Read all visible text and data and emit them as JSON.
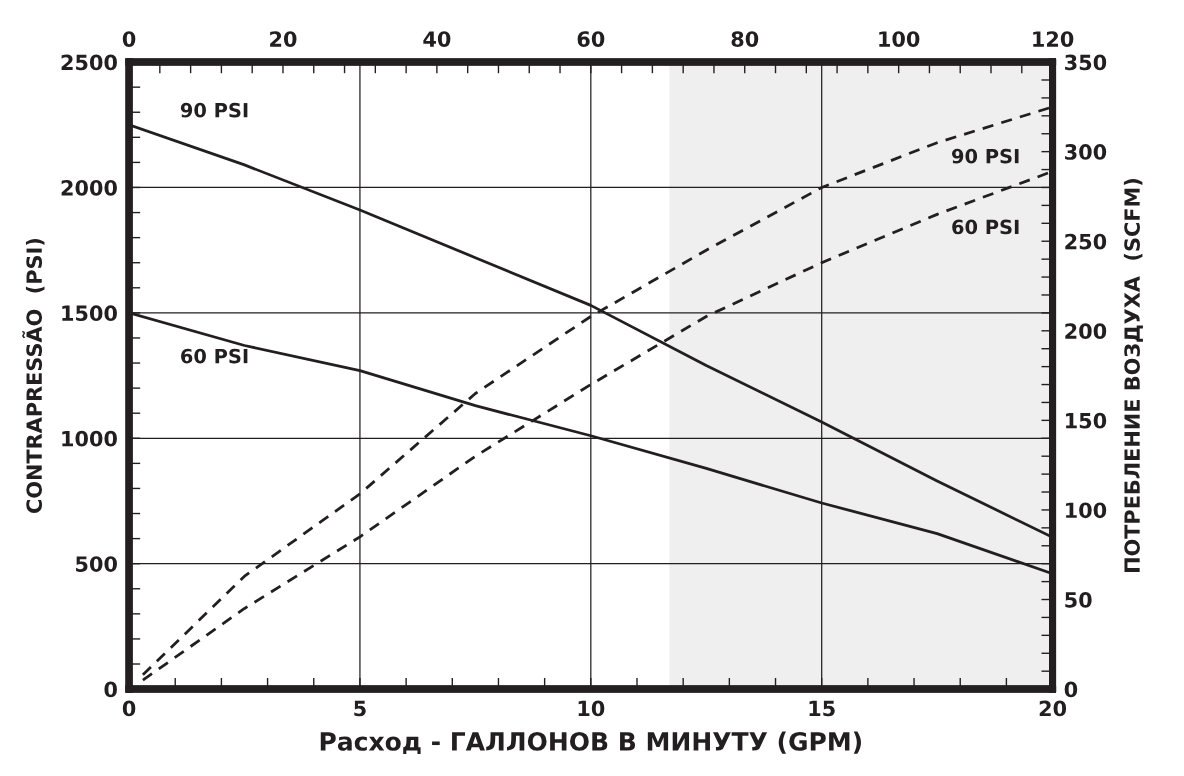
{
  "chart_data": {
    "type": "line",
    "xlabel": "Расход - ГАЛЛОНОВ В МИНУТУ (GPM)",
    "ylabel": "CONTRAPRESSÃO  (PSI)",
    "y2label": "ПОТРЕБЛЕНИЕ ВОЗДУХА  (SCFM)",
    "xlim": [
      0,
      20
    ],
    "ylim": [
      0,
      2500
    ],
    "y2lim": [
      0,
      350
    ],
    "x2lim": [
      0,
      120
    ],
    "xticks": [
      0,
      {
        "value": 1,
        "label": null
      },
      {
        "value": 2,
        "label": null
      },
      {
        "value": 3,
        "label": null
      },
      {
        "value": 4,
        "label": null
      },
      5,
      {
        "value": 6,
        "label": null
      },
      {
        "value": 7,
        "label": null
      },
      {
        "value": 8,
        "label": null
      },
      {
        "value": 9,
        "label": null
      },
      10,
      {
        "value": 11,
        "label": null
      },
      {
        "value": 12,
        "label": null
      },
      {
        "value": 13,
        "label": null
      },
      {
        "value": 14,
        "label": null
      },
      15,
      {
        "value": 16,
        "label": null
      },
      {
        "value": 17,
        "label": null
      },
      {
        "value": 18,
        "label": null
      },
      {
        "value": 19,
        "label": null
      },
      20
    ],
    "x2ticks": [
      0,
      {
        "value": 4,
        "label": null
      },
      {
        "value": 8,
        "label": null
      },
      {
        "value": 12,
        "label": null
      },
      {
        "value": 16,
        "label": null
      },
      20,
      {
        "value": 24,
        "label": null
      },
      {
        "value": 28,
        "label": null
      },
      {
        "value": 32,
        "label": null
      },
      {
        "value": 36,
        "label": null
      },
      40,
      {
        "value": 44,
        "label": null
      },
      {
        "value": 48,
        "label": null
      },
      {
        "value": 52,
        "label": null
      },
      {
        "value": 56,
        "label": null
      },
      60,
      {
        "value": 64,
        "label": null
      },
      {
        "value": 68,
        "label": null
      },
      {
        "value": 72,
        "label": null
      },
      {
        "value": 76,
        "label": null
      },
      80,
      {
        "value": 84,
        "label": null
      },
      {
        "value": 88,
        "label": null
      },
      {
        "value": 92,
        "label": null
      },
      {
        "value": 96,
        "label": null
      },
      100,
      {
        "value": 104,
        "label": null
      },
      {
        "value": 108,
        "label": null
      },
      {
        "value": 112,
        "label": null
      },
      {
        "value": 116,
        "label": null
      },
      120
    ],
    "yticks": [
      0,
      {
        "value": 100,
        "label": null
      },
      {
        "value": 200,
        "label": null
      },
      {
        "value": 300,
        "label": null
      },
      {
        "value": 400,
        "label": null
      },
      500,
      {
        "value": 600,
        "label": null
      },
      {
        "value": 700,
        "label": null
      },
      {
        "value": 800,
        "label": null
      },
      {
        "value": 900,
        "label": null
      },
      1000,
      {
        "value": 1100,
        "label": null
      },
      {
        "value": 1200,
        "label": null
      },
      {
        "value": 1300,
        "label": null
      },
      {
        "value": 1400,
        "label": null
      },
      1500,
      {
        "value": 1600,
        "label": null
      },
      {
        "value": 1700,
        "label": null
      },
      {
        "value": 1800,
        "label": null
      },
      {
        "value": 1900,
        "label": null
      },
      2000,
      {
        "value": 2100,
        "label": null
      },
      {
        "value": 2200,
        "label": null
      },
      {
        "value": 2300,
        "label": null
      },
      {
        "value": 2400,
        "label": null
      },
      2500
    ],
    "y2ticks": [
      0,
      {
        "value": 10,
        "label": null
      },
      {
        "value": 20,
        "label": null
      },
      {
        "value": 30,
        "label": null
      },
      {
        "value": 40,
        "label": null
      },
      50,
      {
        "value": 60,
        "label": null
      },
      {
        "value": 70,
        "label": null
      },
      {
        "value": 80,
        "label": null
      },
      {
        "value": 90,
        "label": null
      },
      100,
      {
        "value": 110,
        "label": null
      },
      {
        "value": 120,
        "label": null
      },
      {
        "value": 130,
        "label": null
      },
      {
        "value": 140,
        "label": null
      },
      150,
      {
        "value": 160,
        "label": null
      },
      {
        "value": 170,
        "label": null
      },
      {
        "value": 180,
        "label": null
      },
      {
        "value": 190,
        "label": null
      },
      200,
      {
        "value": 210,
        "label": null
      },
      {
        "value": 220,
        "label": null
      },
      {
        "value": 230,
        "label": null
      },
      {
        "value": 240,
        "label": null
      },
      250,
      {
        "value": 260,
        "label": null
      },
      {
        "value": 270,
        "label": null
      },
      {
        "value": 280,
        "label": null
      },
      {
        "value": 290,
        "label": null
      },
      300,
      {
        "value": 310,
        "label": null
      },
      {
        "value": 320,
        "label": null
      },
      {
        "value": 330,
        "label": null
      },
      {
        "value": 340,
        "label": null
      },
      350
    ],
    "grid": true,
    "marker": "none",
    "bands": [
      {
        "axis": "x",
        "from": 11.7,
        "to": 20,
        "color": "#efefef"
      }
    ],
    "series": [
      {
        "name": "90 PSI",
        "color": "#231f20",
        "line_style": "solid",
        "x": [
          0,
          2.5,
          5,
          7.5,
          10,
          12.5,
          15,
          17.5,
          20
        ],
        "values": [
          2250,
          2090,
          1910,
          1720,
          1530,
          1290,
          1065,
          830,
          605
        ]
      },
      {
        "name": "60 PSI",
        "color": "#231f20",
        "line_style": "solid",
        "x": [
          0,
          2.5,
          5,
          7.5,
          10,
          12.5,
          15,
          17.5,
          20
        ],
        "values": [
          1500,
          1370,
          1270,
          1130,
          1010,
          880,
          742,
          620,
          460
        ]
      },
      {
        "name": "90 PSI",
        "color": "#231f20",
        "line_style": "dashed",
        "axis": "y2",
        "x": [
          0.3,
          2.5,
          5,
          7.5,
          10,
          12.5,
          15,
          17.5,
          20
        ],
        "values": [
          8,
          63,
          109,
          165,
          208,
          245,
          280,
          305,
          325
        ]
      },
      {
        "name": "60 PSI",
        "color": "#231f20",
        "line_style": "dashed",
        "axis": "y2",
        "x": [
          0.3,
          2.5,
          5,
          7.5,
          10,
          12.5,
          15,
          17.5,
          20
        ],
        "values": [
          5,
          45,
          85,
          130,
          170,
          208,
          238,
          265,
          289
        ]
      }
    ]
  }
}
